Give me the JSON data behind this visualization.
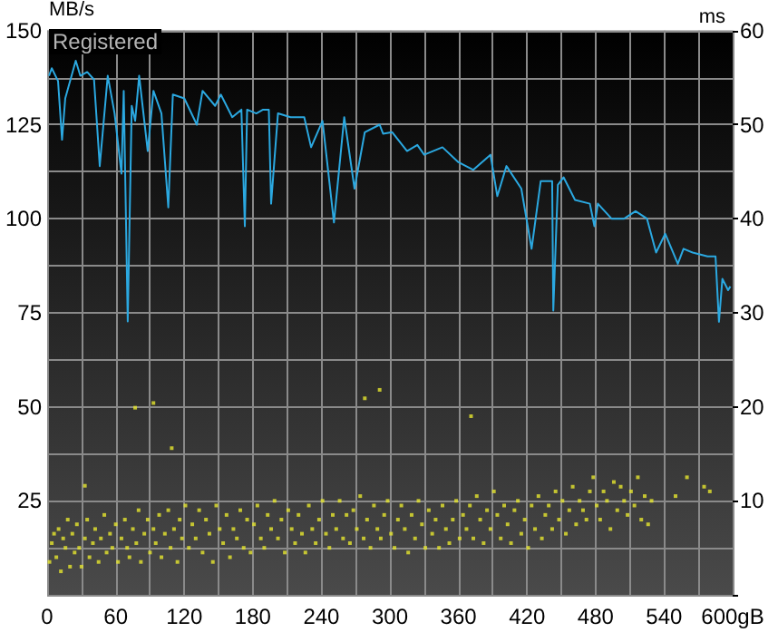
{
  "chart_data": {
    "type": "line",
    "ylabel": "MB/s",
    "y2label": "ms",
    "grid": true,
    "annotations": [
      "Registered"
    ],
    "xlim": [
      0,
      600
    ],
    "xticks": [
      0,
      {
        "value": 30,
        "label": null
      },
      60,
      {
        "value": 90,
        "label": null
      },
      120,
      {
        "value": 150,
        "label": null
      },
      180,
      {
        "value": 210,
        "label": null
      },
      240,
      {
        "value": 270,
        "label": null
      },
      300,
      {
        "value": 330,
        "label": null
      },
      360,
      {
        "value": 390,
        "label": null
      },
      420,
      {
        "value": 450,
        "label": null
      },
      480,
      {
        "value": 510,
        "label": null
      },
      540,
      {
        "value": 570,
        "label": null
      },
      {
        "value": 600,
        "label": "600gB"
      }
    ],
    "ylim": [
      0,
      150
    ],
    "yticks": [
      {
        "value": 0,
        "label": null
      },
      {
        "value": 12.5,
        "label": null
      },
      25,
      {
        "value": 37.5,
        "label": null
      },
      50,
      {
        "value": 62.5,
        "label": null
      },
      75,
      {
        "value": 87.5,
        "label": null
      },
      100,
      {
        "value": 112.5,
        "label": null
      },
      125,
      {
        "value": 137.5,
        "label": null
      },
      150
    ],
    "y2lim": [
      0,
      60
    ],
    "y2ticks": [
      {
        "value": 0,
        "label": null
      },
      10,
      20,
      30,
      40,
      50,
      60
    ],
    "series": [
      {
        "marker": "none",
        "color": "#2ba8e0",
        "x": [
          1.6,
          4,
          9.5,
          13,
          15.8,
          25,
          29,
          35,
          41,
          46,
          53,
          59,
          65,
          67,
          70.5,
          74,
          77,
          80.5,
          88,
          93,
          100,
          106,
          110,
          120,
          131,
          136,
          147,
          152,
          162,
          170,
          173,
          175,
          183,
          189,
          194,
          196,
          202,
          213,
          225,
          231,
          241,
          251,
          260,
          269,
          278,
          291,
          294,
          302,
          315,
          324,
          330,
          346,
          360,
          373,
          388,
          394,
          402,
          415,
          424,
          432,
          442,
          443,
          447,
          452,
          462,
          475,
          479,
          482,
          494,
          505,
          515,
          525,
          533,
          541,
          552,
          557,
          565,
          578,
          585,
          588,
          591,
          596,
          598
        ],
        "values": [
          138,
          140,
          136.6,
          121,
          132,
          142,
          138,
          139,
          137,
          114,
          138,
          128,
          112,
          134,
          72.7,
          130,
          126,
          138,
          118,
          134,
          128,
          103,
          133,
          132,
          125,
          134,
          130,
          133,
          127,
          129,
          98,
          129,
          128,
          129,
          129,
          104,
          128,
          127,
          127,
          119,
          126,
          99,
          127,
          108,
          123,
          125,
          122.6,
          123,
          118,
          119.6,
          117,
          119,
          115,
          113,
          117,
          106,
          114,
          108,
          92,
          110,
          110,
          75.6,
          109,
          111,
          105,
          104,
          98,
          104,
          100,
          100,
          102,
          100,
          91,
          96,
          88,
          92,
          91,
          90,
          90,
          72.6,
          84,
          81,
          82
        ]
      },
      {
        "type": "scatter",
        "axis": "y2",
        "marker": "square",
        "color": "#e6e62e",
        "x": [
          2,
          4,
          6,
          8,
          10,
          12,
          14,
          16,
          18,
          20,
          22,
          24,
          26,
          28,
          30,
          33,
          35,
          37,
          40,
          42,
          45,
          47,
          50,
          52,
          55,
          57,
          60,
          62,
          65,
          68,
          70,
          72,
          75,
          78,
          80,
          82,
          85,
          88,
          90,
          93,
          95,
          98,
          100,
          103,
          106,
          108,
          111,
          114,
          116,
          118,
          121,
          124,
          127,
          130,
          133,
          136,
          139,
          142,
          145,
          148,
          151,
          154,
          157,
          160,
          163,
          166,
          169,
          172,
          175,
          178,
          181,
          184,
          187,
          190,
          193,
          196,
          199,
          202,
          205,
          208,
          211,
          214,
          217,
          220,
          223,
          226,
          229,
          232,
          235,
          238,
          241,
          244,
          247,
          250,
          253,
          256,
          259,
          262,
          265,
          268,
          271,
          274,
          277,
          280,
          283,
          286,
          289,
          292,
          295,
          298,
          301,
          304,
          307,
          310,
          313,
          316,
          319,
          322,
          325,
          328,
          331,
          334,
          337,
          340,
          343,
          346,
          349,
          352,
          355,
          358,
          361,
          364,
          367,
          370,
          373,
          376,
          379,
          382,
          385,
          388,
          391,
          394,
          397,
          400,
          403,
          406,
          409,
          412,
          415,
          418,
          421,
          424,
          427,
          430,
          433,
          436,
          439,
          442,
          445,
          448,
          451,
          454,
          457,
          460,
          463,
          466,
          469,
          472,
          475,
          478,
          481,
          484,
          487,
          490,
          493,
          496,
          499,
          502,
          505,
          508,
          511,
          514,
          517,
          520,
          523,
          526,
          529,
          550,
          560,
          575,
          580,
          33,
          77,
          93,
          109,
          278,
          291,
          371
        ],
        "values": [
          3.5,
          5.5,
          6.5,
          4,
          7,
          2.5,
          6,
          5,
          8,
          3,
          6.5,
          4.5,
          7.5,
          5,
          3,
          6,
          8,
          4,
          5.5,
          7,
          3.5,
          6,
          8.5,
          4.5,
          6.5,
          5,
          7.5,
          3.5,
          6,
          8,
          5,
          4,
          7,
          5.5,
          9,
          3.5,
          6.5,
          8,
          4.5,
          7,
          5.5,
          8.5,
          4,
          6.5,
          9,
          5,
          7,
          3.5,
          8,
          6,
          9.5,
          5,
          7.5,
          6,
          9,
          4.5,
          8,
          6.5,
          3.5,
          9.5,
          7,
          5.5,
          8.5,
          4,
          7,
          6,
          9,
          5,
          8,
          4.5,
          7.5,
          9.5,
          6,
          5,
          8.5,
          7,
          10,
          6,
          8,
          4.5,
          9,
          7,
          5.5,
          8.5,
          6.5,
          4.5,
          9.5,
          7,
          5.5,
          8,
          10,
          6.5,
          5,
          8.5,
          7,
          10,
          6,
          8.5,
          5.5,
          9,
          7,
          10.5,
          6,
          8,
          5,
          9.5,
          7,
          6,
          8.5,
          10,
          6.5,
          5,
          8,
          9.5,
          7,
          4.5,
          8.5,
          6,
          10,
          7.5,
          5,
          9,
          6.5,
          8,
          5,
          9.5,
          7,
          5.5,
          8,
          10,
          6,
          8.5,
          7,
          9.5,
          6,
          10.5,
          8,
          5.5,
          9,
          7,
          11,
          8.5,
          6,
          9.5,
          7.5,
          5.5,
          9,
          10,
          6.5,
          8,
          5,
          9.5,
          7,
          10.5,
          6,
          8.5,
          9.5,
          7,
          11,
          8,
          10,
          6.5,
          9,
          11.5,
          7.5,
          10,
          9,
          8,
          11,
          12.5,
          9.5,
          8,
          11,
          10,
          7,
          12,
          9,
          11.5,
          10,
          8.5,
          11,
          9.5,
          12.5,
          8,
          10.5,
          7.5,
          10,
          10.5,
          12.5,
          11.5,
          11,
          11.6,
          19.9,
          20.4,
          15.6,
          20.9,
          21.8,
          19
        ]
      }
    ]
  }
}
